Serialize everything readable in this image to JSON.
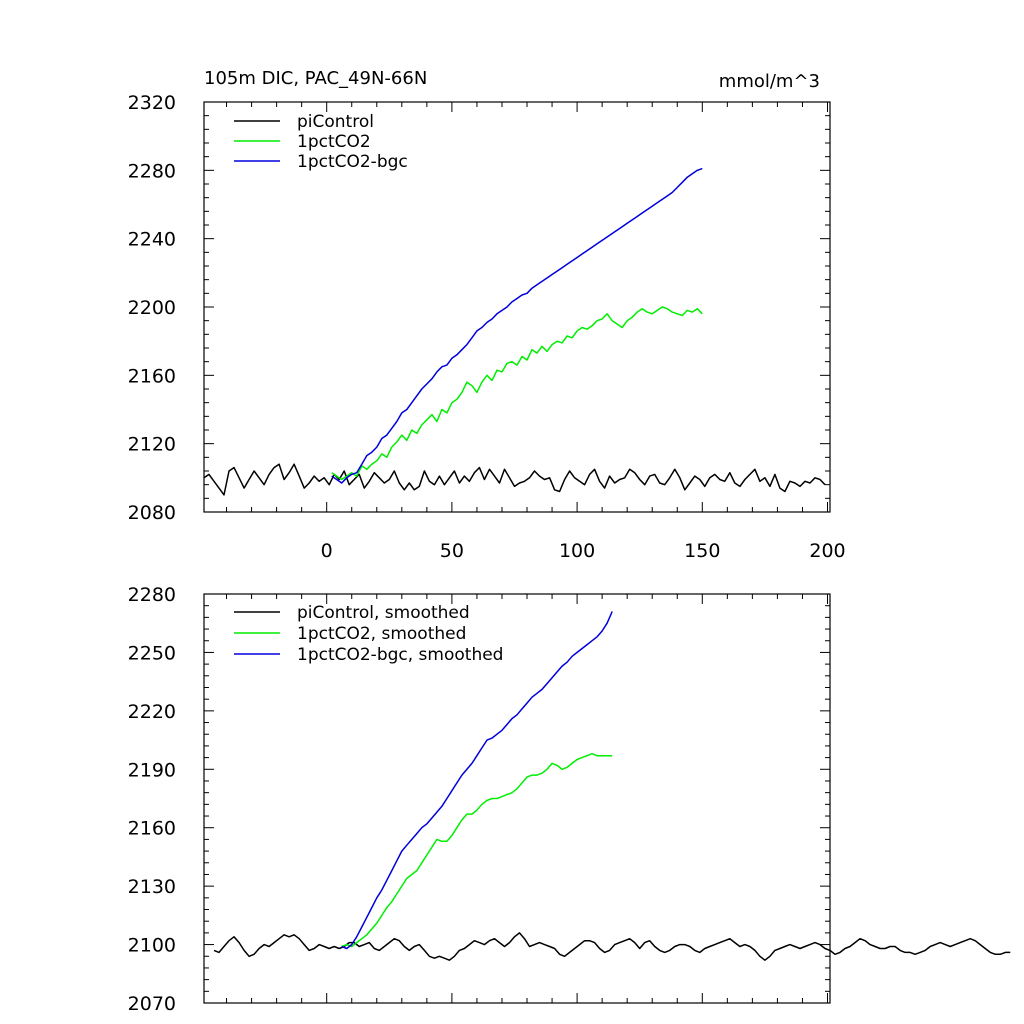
{
  "chart_data": [
    {
      "type": "line",
      "title": "105m DIC, PAC_49N-66N",
      "units": "mmol/m^3",
      "xlim": [
        -49,
        201
      ],
      "ylim": [
        2080,
        2320
      ],
      "xticks": [
        0,
        50,
        100,
        150,
        200
      ],
      "yticks": [
        2080,
        2120,
        2160,
        2200,
        2240,
        2280,
        2320
      ],
      "show_x_tick_labels": true,
      "legend_position": "top-left",
      "series": [
        {
          "name": "piControl",
          "color": "#000000",
          "x_start": -49,
          "x_step": 2,
          "values": [
            2100,
            2102,
            2098,
            2094,
            2090,
            2104,
            2106,
            2100,
            2094,
            2099,
            2104,
            2100,
            2096,
            2102,
            2106,
            2108,
            2099,
            2103,
            2108,
            2101,
            2094,
            2097,
            2101,
            2098,
            2100,
            2096,
            2102,
            2099,
            2104,
            2096,
            2099,
            2102,
            2094,
            2098,
            2103,
            2100,
            2097,
            2099,
            2104,
            2097,
            2093,
            2097,
            2093,
            2095,
            2104,
            2098,
            2096,
            2101,
            2096,
            2100,
            2104,
            2097,
            2101,
            2098,
            2103,
            2106,
            2099,
            2105,
            2101,
            2097,
            2105,
            2100,
            2095,
            2097,
            2098,
            2100,
            2104,
            2101,
            2099,
            2100,
            2093,
            2092,
            2099,
            2104,
            2100,
            2098,
            2096,
            2102,
            2105,
            2098,
            2094,
            2101,
            2097,
            2099,
            2100,
            2105,
            2103,
            2099,
            2096,
            2101,
            2102,
            2097,
            2096,
            2100,
            2105,
            2100,
            2093,
            2097,
            2101,
            2099,
            2095,
            2100,
            2102,
            2099,
            2098,
            2103,
            2097,
            2095,
            2099,
            2102,
            2105,
            2098,
            2100,
            2095,
            2102,
            2094,
            2092,
            2098,
            2097,
            2095,
            2098,
            2097,
            2100,
            2099,
            2096
          ]
        },
        {
          "name": "1pctCO2",
          "color": "#00ee00",
          "x_start": 2,
          "x_step": 2,
          "values": [
            2103,
            2101,
            2099,
            2101,
            2103,
            2101,
            2107,
            2105,
            2108,
            2110,
            2114,
            2112,
            2118,
            2121,
            2125,
            2122,
            2128,
            2126,
            2131,
            2134,
            2137,
            2133,
            2140,
            2138,
            2144,
            2146,
            2150,
            2156,
            2154,
            2150,
            2156,
            2160,
            2157,
            2163,
            2162,
            2167,
            2168,
            2166,
            2171,
            2169,
            2175,
            2173,
            2177,
            2174,
            2178,
            2180,
            2179,
            2183,
            2182,
            2186,
            2188,
            2187,
            2189,
            2192,
            2193,
            2196,
            2192,
            2190,
            2188,
            2192,
            2194,
            2197,
            2199,
            2197,
            2196,
            2198,
            2200,
            2199,
            2197,
            2196,
            2195,
            2198,
            2197,
            2199,
            2196
          ]
        },
        {
          "name": "1pctCO2-bgc",
          "color": "#0000dd",
          "x_start": 2,
          "x_step": 2,
          "values": [
            2101,
            2099,
            2097,
            2100,
            2102,
            2103,
            2108,
            2113,
            2115,
            2118,
            2123,
            2125,
            2129,
            2133,
            2138,
            2140,
            2144,
            2148,
            2152,
            2155,
            2158,
            2162,
            2165,
            2166,
            2170,
            2172,
            2175,
            2178,
            2182,
            2186,
            2188,
            2191,
            2193,
            2196,
            2198,
            2200,
            2203,
            2205,
            2207,
            2208,
            2211,
            2213,
            2215,
            2217,
            2219,
            2221,
            2223,
            2225,
            2227,
            2229,
            2231,
            2233,
            2235,
            2237,
            2239,
            2241,
            2243,
            2245,
            2247,
            2249,
            2251,
            2253,
            2255,
            2257,
            2259,
            2261,
            2263,
            2265,
            2267,
            2270,
            2273,
            2276,
            2278,
            2280,
            2281
          ]
        }
      ]
    },
    {
      "type": "line",
      "xlim": [
        -49,
        201
      ],
      "ylim": [
        2070,
        2280
      ],
      "xticks": [
        0,
        50,
        100,
        150,
        200
      ],
      "yticks": [
        2070,
        2100,
        2130,
        2160,
        2190,
        2220,
        2250,
        2280
      ],
      "show_x_tick_labels": false,
      "legend_position": "top-left",
      "series": [
        {
          "name": "piControl, smoothed",
          "color": "#000000",
          "x_start": -45,
          "x_step": 2,
          "values": [
            2097,
            2096,
            2099,
            2102,
            2104,
            2101,
            2097,
            2094,
            2095,
            2098,
            2100,
            2099,
            2101,
            2103,
            2105,
            2104,
            2105,
            2103,
            2100,
            2097,
            2098,
            2100,
            2099,
            2098,
            2099,
            2098,
            2099,
            2101,
            2101,
            2099,
            2100,
            2101,
            2098,
            2097,
            2099,
            2101,
            2103,
            2102,
            2099,
            2097,
            2099,
            2100,
            2097,
            2094,
            2093,
            2094,
            2093,
            2092,
            2094,
            2097,
            2098,
            2100,
            2102,
            2101,
            2100,
            2102,
            2103,
            2101,
            2099,
            2101,
            2104,
            2106,
            2103,
            2099,
            2100,
            2101,
            2100,
            2099,
            2098,
            2095,
            2094,
            2096,
            2098,
            2100,
            2102,
            2102,
            2101,
            2098,
            2096,
            2097,
            2100,
            2101,
            2102,
            2103,
            2101,
            2098,
            2101,
            2102,
            2099,
            2097,
            2096,
            2097,
            2099,
            2100,
            2100,
            2099,
            2097,
            2096,
            2098,
            2099,
            2100,
            2101,
            2102,
            2103,
            2101,
            2099,
            2100,
            2099,
            2097,
            2094,
            2092,
            2094,
            2097,
            2098,
            2099,
            2100,
            2099,
            2098,
            2099,
            2100,
            2101,
            2100,
            2098,
            2097,
            2095,
            2096,
            2098,
            2099,
            2101,
            2103,
            2102,
            2100,
            2099,
            2098,
            2098,
            2099,
            2099,
            2097,
            2096,
            2096,
            2095,
            2096,
            2097,
            2099,
            2100,
            2101,
            2100,
            2099,
            2100,
            2101,
            2102,
            2103,
            2102,
            2100,
            2098,
            2096,
            2095,
            2095,
            2096,
            2096
          ]
        },
        {
          "name": "1pctCO2, smoothed",
          "color": "#00ee00",
          "x_start": 6,
          "x_step": 2,
          "values": [
            2099,
            2100,
            2099,
            2101,
            2103,
            2105,
            2108,
            2111,
            2115,
            2119,
            2122,
            2126,
            2130,
            2134,
            2136,
            2138,
            2142,
            2146,
            2150,
            2154,
            2153,
            2153,
            2156,
            2160,
            2164,
            2167,
            2167,
            2169,
            2172,
            2174,
            2175,
            2175,
            2176,
            2177,
            2178,
            2180,
            2183,
            2186,
            2187,
            2187,
            2188,
            2190,
            2193,
            2192,
            2190,
            2191,
            2193,
            2195,
            2196,
            2197,
            2198,
            2197,
            2197,
            2197,
            2197
          ]
        },
        {
          "name": "1pctCO2-bgc, smoothed",
          "color": "#0000dd",
          "x_start": 6,
          "x_step": 2,
          "values": [
            2099,
            2098,
            2100,
            2104,
            2109,
            2114,
            2119,
            2124,
            2128,
            2133,
            2138,
            2143,
            2148,
            2151,
            2154,
            2157,
            2160,
            2162,
            2165,
            2168,
            2171,
            2175,
            2179,
            2183,
            2187,
            2190,
            2193,
            2197,
            2201,
            2205,
            2206,
            2208,
            2210,
            2213,
            2216,
            2218,
            2221,
            2224,
            2227,
            2229,
            2231,
            2234,
            2237,
            2240,
            2243,
            2245,
            2248,
            2250,
            2252,
            2254,
            2256,
            2258,
            2261,
            2265,
            2271
          ]
        }
      ]
    }
  ]
}
